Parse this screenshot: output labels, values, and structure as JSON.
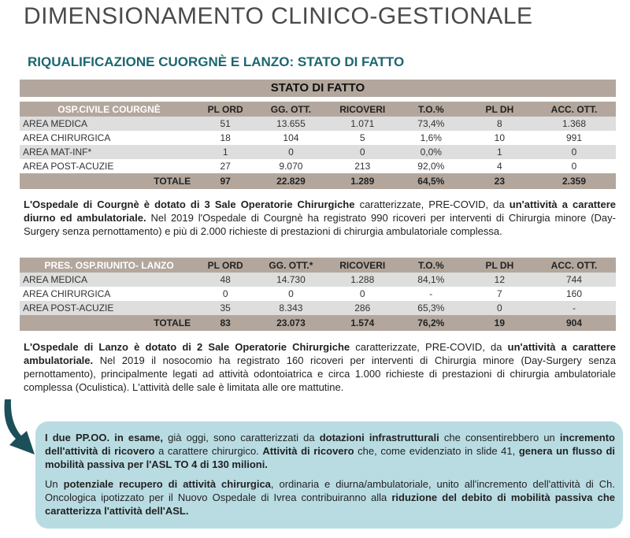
{
  "title": "DIMENSIONAMENTO CLINICO-GESTIONALE",
  "subtitle": "RIQUALIFICAZIONE CUORGNÈ E LANZO: STATO DI FATTO",
  "banner": "STATO DI FATTO",
  "colors": {
    "header_bg": "#b3a79d",
    "subtitle": "#1d6670",
    "box_bg": "#b9dce3",
    "arrow": "#1b4f5a"
  },
  "table1": {
    "columns": [
      "OSP.CIVILE COURGNÈ",
      "PL ORD",
      "GG. OTT.",
      "RICOVERI",
      "T.O.%",
      "PL DH",
      "ACC. OTT."
    ],
    "rows": [
      [
        "AREA MEDICA",
        "51",
        "13.655",
        "1.071",
        "73,4%",
        "8",
        "1.368"
      ],
      [
        "AREA CHIRURGICA",
        "18",
        "104",
        "5",
        "1,6%",
        "10",
        "991"
      ],
      [
        "AREA MAT-INF*",
        "1",
        "0",
        "0",
        "0,0%",
        "1",
        "0"
      ],
      [
        "AREA POST-ACUZIE",
        "27",
        "9.070",
        "213",
        "92,0%",
        "4",
        "0"
      ]
    ],
    "total": [
      "TOTALE",
      "97",
      "22.829",
      "1.289",
      "64,5%",
      "23",
      "2.359"
    ]
  },
  "para1": [
    {
      "t": "L'Ospedale di Courgnè è dotato di 3 Sale Operatorie Chirurgiche",
      "b": true
    },
    {
      "t": " caratterizzate, PRE-COVID, da ",
      "b": false
    },
    {
      "t": "un'attività a carattere diurno ed ambulatoriale.",
      "b": true
    },
    {
      "t": " Nel 2019 l'Ospedale di Courgnè ha registrato 990 ricoveri per interventi di Chirurgia minore (Day-Surgery senza pernottamento) e più di 2.000 richieste di prestazioni di chirurgia ambulatoriale complessa.",
      "b": false
    }
  ],
  "table2": {
    "columns": [
      "PRES. OSP.RIUNITO- LANZO",
      "PL ORD",
      "GG. OTT.*",
      "RICOVERI",
      "T.O.%",
      "PL DH",
      "ACC. OTT."
    ],
    "rows": [
      [
        "AREA MEDICA",
        "48",
        "14.730",
        "1.288",
        "84,1%",
        "12",
        "744"
      ],
      [
        "AREA CHIRURGICA",
        "0",
        "0",
        "0",
        "-",
        "7",
        "160"
      ],
      [
        "AREA POST-ACUZIE",
        "35",
        "8.343",
        "286",
        "65,3%",
        "0",
        "-"
      ]
    ],
    "total": [
      "TOTALE",
      "83",
      "23.073",
      "1.574",
      "76,2%",
      "19",
      "904"
    ]
  },
  "para2": [
    {
      "t": "L'Ospedale di Lanzo è dotato di 2 Sale Operatorie Chirurgiche",
      "b": true
    },
    {
      "t": " caratterizzate, PRE-COVID, da ",
      "b": false
    },
    {
      "t": "un'attività a carattere ambulatoriale.",
      "b": true
    },
    {
      "t": " Nel 2019 il nosocomio ha registrato 160 ricoveri per interventi di Chirurgia minore (Day-Surgery senza pernottamento), principalmente legati ad attività odontoiatrica e circa 1.000 richieste di prestazioni di chirurgia ambulatoriale complessa (Oculistica). L'attività delle sale è limitata alle ore mattutine.",
      "b": false
    }
  ],
  "box": {
    "icon": "curved-arrow-icon",
    "paragraphs": [
      [
        {
          "t": "I due PP.OO. in esame,",
          "b": true
        },
        {
          "t": " già oggi, sono caratterizzati da ",
          "b": false
        },
        {
          "t": "dotazioni infrastrutturali",
          "b": true
        },
        {
          "t": " che consentirebbero un ",
          "b": false
        },
        {
          "t": "incremento dell'attività di ricovero",
          "b": true
        },
        {
          "t": " a carattere chirurgico. ",
          "b": false
        },
        {
          "t": "Attività di ricovero",
          "b": true
        },
        {
          "t": " che, come evidenziato in slide 41, ",
          "b": false
        },
        {
          "t": "genera un flusso di mobilità passiva per l'ASL TO 4 di 130 milioni.",
          "b": true
        }
      ],
      [
        {
          "t": "Un ",
          "b": false
        },
        {
          "t": "potenziale recupero di attività chirurgica",
          "b": true
        },
        {
          "t": ", ordinaria e diurna/ambulatoriale, unito all'incremento dell'attività di Ch. Oncologica ipotizzato per il Nuovo Ospedale di Ivrea contribuiranno alla ",
          "b": false
        },
        {
          "t": "riduzione del debito di mobilità passiva che caratterizza l'attività dell'ASL.",
          "b": true
        }
      ]
    ]
  }
}
